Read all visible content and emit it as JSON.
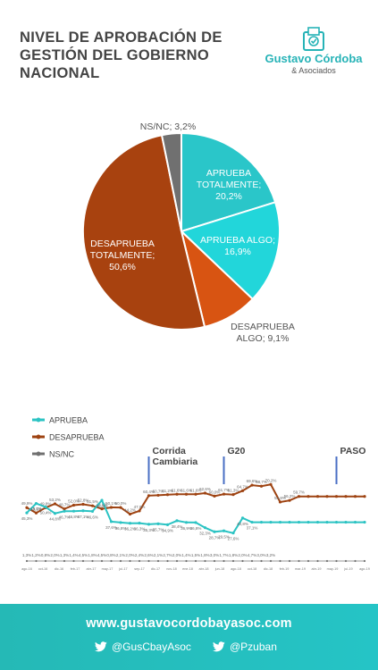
{
  "title_lines": [
    "NIVEL DE APROBACIÓN DE",
    "GESTIÓN DEL GOBIERNO",
    "NACIONAL"
  ],
  "logo": {
    "name": "Gustavo Córdoba",
    "sub": "& Asociados",
    "icon": "ballot-box-icon"
  },
  "colors": {
    "aprueba_totalmente": "#2ac6c9",
    "aprueba_algo": "#20d4d9",
    "desaprueba_algo": "#d85412",
    "desaprueba_totalmente": "#a8420f",
    "nsnc": "#707070",
    "aprueba_line": "#2bc3c3",
    "desaprueba_line": "#9e4312",
    "annotation": "#4a6fc4"
  },
  "chart_data": [
    {
      "type": "pie",
      "slices": [
        {
          "label_lines": [
            "APRUEBA",
            "TOTALMENTE;",
            "20,2%"
          ],
          "value": 20.2,
          "color": "#2ac6c9"
        },
        {
          "label_lines": [
            "APRUEBA ALGO;",
            "16,9%"
          ],
          "value": 16.9,
          "color": "#22d6da"
        },
        {
          "label_lines": [
            "DESAPRUEBA",
            "ALGO; 9,1%"
          ],
          "value": 9.1,
          "color": "#d85412"
        },
        {
          "label_lines": [
            "DESAPRUEBA",
            "TOTALMENTE;",
            "50,6%"
          ],
          "value": 50.6,
          "color": "#a8420f"
        },
        {
          "label_lines": [
            "NS/NC; 3,2%"
          ],
          "value": 3.2,
          "color": "#707070"
        }
      ]
    },
    {
      "type": "line",
      "legend": [
        "APRUEBA",
        "DESAPRUEBA",
        "NS/NC"
      ],
      "x": [
        "ago-16",
        "sep-16",
        "oct-16",
        "nov-16",
        "dic-16",
        "ene-17",
        "feb-17",
        "mar-17",
        "abr-17",
        "may-17",
        "jun-17",
        "jul-17",
        "ago-17",
        "sep-17",
        "oct-17",
        "nov-17",
        "dic-17",
        "ene-18",
        "feb-18",
        "mar-18",
        "abr-18",
        "may-18",
        "jun-18",
        "jul-18",
        "ago-18",
        "sep-18",
        "oct-18",
        "nov-18",
        "dic-18",
        "ene-19",
        "feb-19",
        "mar-19",
        "abr-19",
        "may-19",
        "jun-19",
        "jul-19",
        "ago-19"
      ],
      "x_tick_labels": [
        "ago-16",
        "",
        "oct-16",
        "",
        "dic-16",
        "",
        "feb-17",
        "",
        "abr-17",
        "",
        "may-17",
        "",
        "jul-17",
        "",
        "sep-17",
        "",
        "dic-17",
        "",
        "nov-18",
        "",
        "ene-18",
        "",
        "abr-18",
        "",
        "jun-18",
        "",
        "ago-18",
        "",
        "oct-18",
        "",
        "dic-18",
        "",
        "feb-19",
        "",
        "mar-19",
        "",
        "abr-19",
        "",
        "may-19",
        "",
        "jul-19",
        "",
        "ago-19"
      ],
      "series": [
        {
          "name": "DESAPRUEBA",
          "values": [
            49.9,
            45.2,
            49.8,
            53.2,
            48.7,
            52.0,
            52.8,
            51.5,
            48.8,
            50.1,
            50.0,
            44.2,
            47.0,
            60.4,
            60.7,
            61.2,
            61.6,
            61.6,
            61.6,
            62.6,
            60.0,
            61.7,
            61.3,
            64.7,
            69.6,
            68.7,
            70.2,
            54.8,
            56.2,
            59.7,
            59.7,
            59.7,
            59.7,
            59.7,
            59.7,
            59.7,
            59.7
          ],
          "labels": [
            "49,9%",
            "45,2%",
            "49,8%",
            "53,2%",
            "48,7%",
            "52,0%",
            "52,8%",
            "51,5%",
            "48,8%",
            "50,1%",
            "50,0%",
            "44,2%",
            "47,0%",
            "60,4%",
            "60,7%",
            "61,2%",
            "61,6%",
            "61,6%",
            "61,6%",
            "62,6%",
            "60,0%",
            "61,7%",
            "61,3%",
            "64,7%",
            "69,6%",
            "68,7%",
            "70,2%",
            "54,8%",
            "56,2%",
            "59,7%",
            "",
            "",
            "",
            "",
            "",
            "",
            ""
          ]
        },
        {
          "name": "APRUEBA",
          "values": [
            45.3,
            53.5,
            50.4,
            44.8,
            46.7,
            46.8,
            47.1,
            46.6,
            56.3,
            37.6,
            36.8,
            36.2,
            36.3,
            35.3,
            35.7,
            34.9,
            38.4,
            36.9,
            36.8,
            32.3,
            28.7,
            29.5,
            27.6,
            40.8,
            37.1,
            37.1,
            37.1,
            37.1,
            37.1,
            37.1,
            37.1,
            37.1,
            37.1,
            37.1,
            37.1,
            37.1,
            37.1
          ],
          "labels": [
            "45,3%",
            "53,5%",
            "50,4%",
            "44,8%",
            "46,7%",
            "46,8%",
            "47,1%",
            "46,6%",
            "56,3%",
            "37,6%",
            "36,8%",
            "36,2%",
            "36,3%",
            "35,3%",
            "35,7%",
            "34,9%",
            "38,4%",
            "36,9%",
            "36,8%",
            "32,3%",
            "28,7%",
            "29,5%",
            "27,6%",
            "40,8%",
            "37,1%",
            "",
            "",
            "",
            "",
            "",
            "",
            "",
            "",
            "",
            "",
            "",
            ""
          ]
        },
        {
          "name": "NS/NC",
          "values": [
            1.3,
            1.2,
            0.8,
            2.0,
            1.3,
            1.4,
            4.5,
            1.8,
            4.5,
            0.8,
            2.1,
            2.0,
            2.4,
            2.6,
            2.1,
            2.7,
            2.0,
            1.4,
            1.5,
            1.8,
            3.0,
            1.7,
            1.8,
            2.0,
            4.7,
            3.0,
            3.2,
            3.2,
            3.2,
            3.2,
            3.2,
            3.2,
            3.2,
            3.2,
            3.2,
            3.2,
            3.2
          ],
          "labels": [
            "1,3%",
            "1,2%",
            "0,8%",
            "2,0%",
            "1,3%",
            "1,4%",
            "4,5%",
            "1,8%",
            "4,5%",
            "0,8%",
            "2,1%",
            "2,0%",
            "2,4%",
            "2,6%",
            "2,1%",
            "2,7%",
            "2,0%",
            "1,4%",
            "1,5%",
            "1,8%",
            "3,0%",
            "1,7%",
            "1,8%",
            "2,0%",
            "4,7%",
            "3,0%",
            "3,2%",
            "",
            "",
            "",
            "",
            "",
            "",
            "",
            "",
            "",
            ""
          ]
        }
      ],
      "annotations": [
        {
          "label_lines": [
            "Corrida",
            "Cambiaria"
          ],
          "x_index": 13
        },
        {
          "label_lines": [
            "G20"
          ],
          "x_index": 21
        },
        {
          "label_lines": [
            "PASO"
          ],
          "x_index": 33
        }
      ]
    }
  ],
  "footer": {
    "url": "www.gustavocordobayasoc.com",
    "handles": [
      "@GusCbayAsoc",
      "@Pzuban"
    ],
    "icon": "twitter-icon"
  }
}
